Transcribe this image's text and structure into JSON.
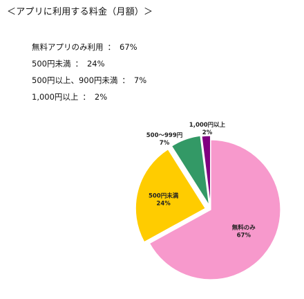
{
  "title": "＜アプリに利用する料金（月額）＞",
  "summary": [
    {
      "label": "無料アプリのみ利用",
      "value": "67%"
    },
    {
      "label": "500円未満",
      "value": "24%"
    },
    {
      "label": "500円以上、900円未満",
      "value": "7%"
    },
    {
      "label": "1,000円以上",
      "value": "2%"
    }
  ],
  "separator": "：",
  "chart_data": {
    "type": "pie",
    "start": "12 o'clock, clockwise",
    "exploded": true,
    "slices": [
      {
        "label": "無料のみ",
        "value": 67,
        "value_label": "67%",
        "color": "#f799cc"
      },
      {
        "label": "500円未満",
        "value": 24,
        "value_label": "24%",
        "color": "#ffcc00"
      },
      {
        "label": "500～999円",
        "value": 7,
        "value_label": "7%",
        "color": "#339966"
      },
      {
        "label": "1,000円以上",
        "value": 2,
        "value_label": "2%",
        "color": "#800080"
      }
    ]
  }
}
